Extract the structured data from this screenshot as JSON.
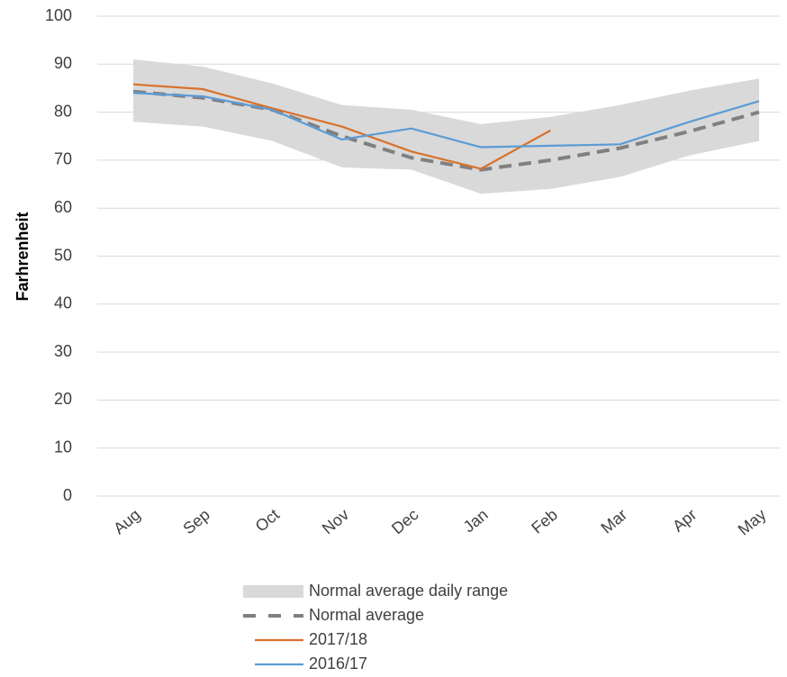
{
  "chart_data": {
    "type": "line",
    "y_label": "Farhrenheit",
    "categories": [
      "Aug",
      "Sep",
      "Oct",
      "Nov",
      "Dec",
      "Jan",
      "Feb",
      "Mar",
      "Apr",
      "May"
    ],
    "ylim": [
      0,
      100
    ],
    "yticks": [
      0,
      10,
      20,
      30,
      40,
      50,
      60,
      70,
      80,
      90,
      100
    ],
    "grid": true,
    "series": [
      {
        "name": "Normal average daily range",
        "color": "#d9d9d9",
        "band": true,
        "high": [
          91,
          89.5,
          86,
          81.5,
          80.5,
          77.5,
          79,
          81.5,
          84.5,
          87
        ],
        "low": [
          78,
          77,
          74,
          68.5,
          68,
          63,
          64,
          66.5,
          71,
          74
        ]
      },
      {
        "name": "Normal average",
        "color": "#808080",
        "dashed": true,
        "values": [
          84.3,
          83,
          80.5,
          75,
          70.5,
          68,
          70,
          72.5,
          76,
          80
        ]
      },
      {
        "name": "2017/18",
        "color": "#d9712b",
        "values": [
          85.8,
          84.8,
          80.8,
          77,
          71.8,
          68.2,
          76.2,
          null,
          null,
          null
        ]
      },
      {
        "name": "2016/17",
        "color": "#5b9bd5",
        "values": [
          84,
          83.3,
          80.5,
          74.3,
          76.6,
          72.7,
          73,
          73.3,
          78,
          82.3
        ]
      }
    ]
  }
}
